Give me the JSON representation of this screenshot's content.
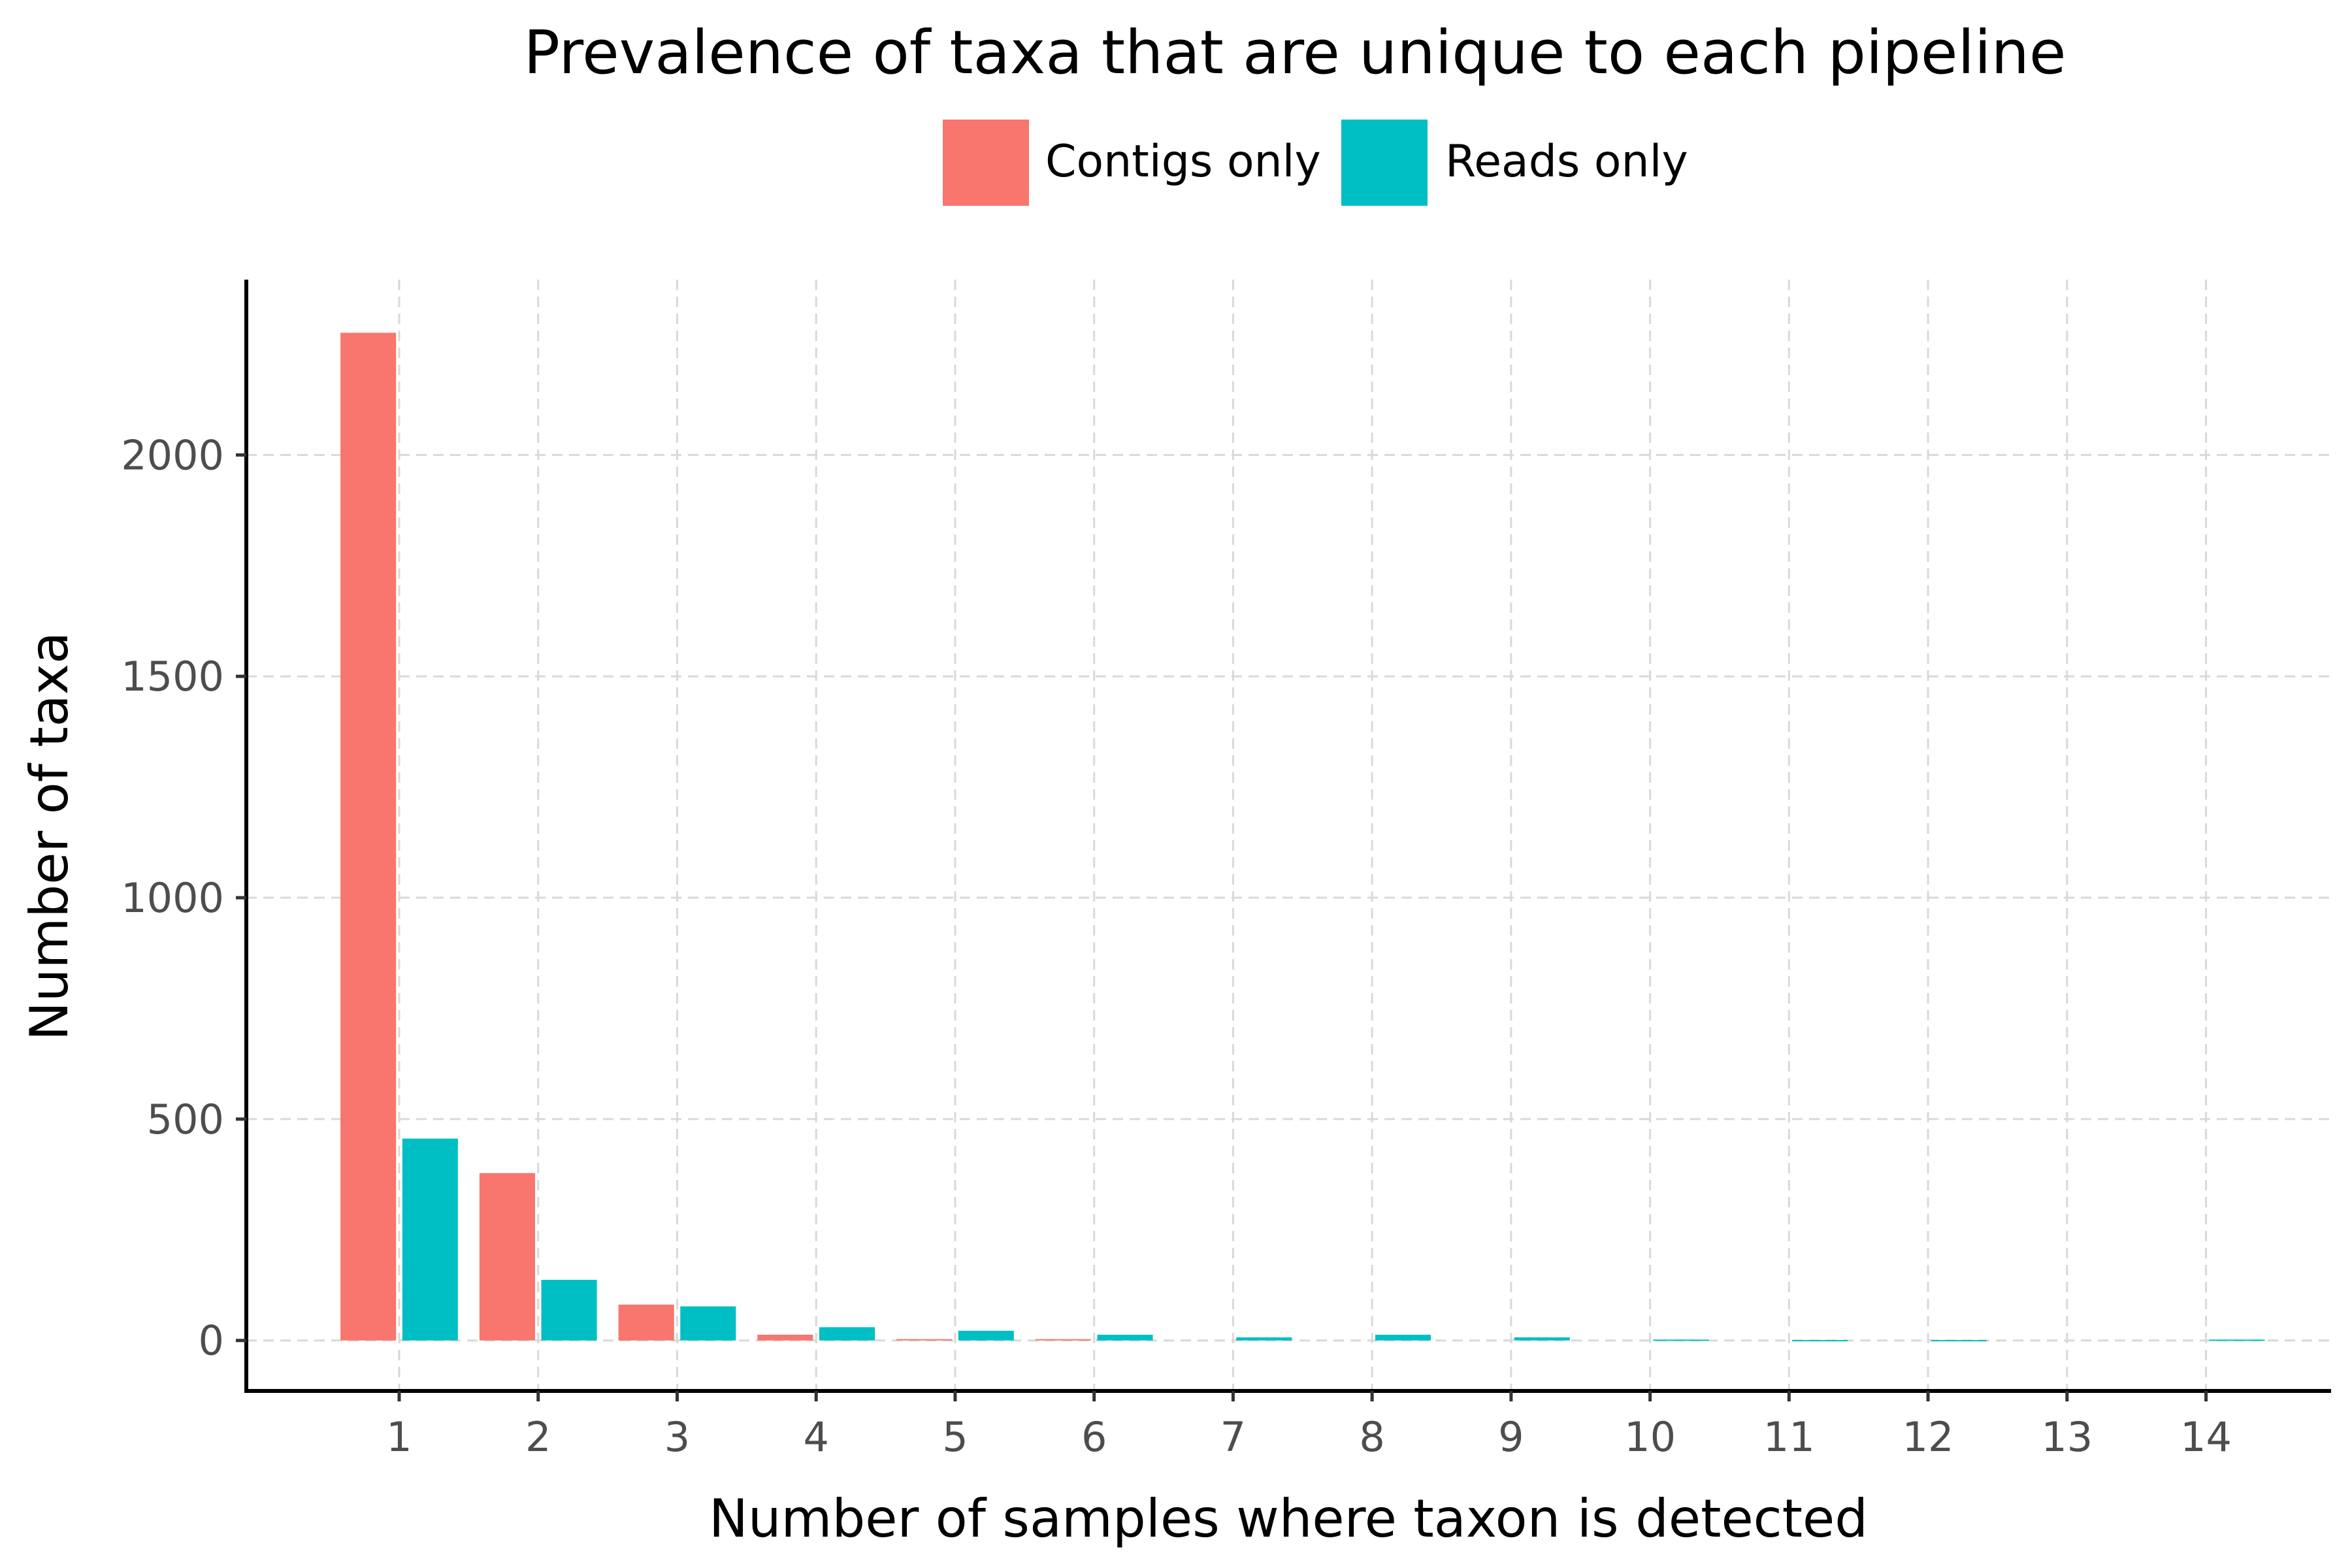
{
  "chart_data": {
    "type": "bar",
    "title": "Prevalence of taxa that are unique to each pipeline",
    "xlabel": "Number of samples where taxon is detected",
    "ylabel": "Number of taxa",
    "categories": [
      "1",
      "2",
      "3",
      "4",
      "5",
      "6",
      "7",
      "8",
      "9",
      "10",
      "11",
      "12",
      "13",
      "14"
    ],
    "series": [
      {
        "name": "Contigs only",
        "color": "#F8766D",
        "values": [
          2276,
          378,
          81,
          13,
          3,
          3,
          0,
          0,
          0,
          0,
          0,
          0,
          0,
          0
        ]
      },
      {
        "name": "Reads only",
        "color": "#00BFC4",
        "values": [
          456,
          137,
          77,
          30,
          22,
          13,
          7,
          13,
          7,
          2,
          1,
          1,
          0,
          2
        ]
      }
    ],
    "x_ticks": [
      "1",
      "2",
      "3",
      "4",
      "5",
      "6",
      "7",
      "8",
      "9",
      "10",
      "11",
      "12",
      "13",
      "14"
    ],
    "y_ticks": [
      0,
      500,
      1000,
      1500,
      2000
    ],
    "y_tick_labels": [
      "0",
      "500",
      "1000",
      "1500",
      "2000"
    ],
    "xlim": [
      -0.1,
      14.9
    ],
    "ylim": [
      -114,
      2396
    ],
    "grid": true,
    "grid_style": "dashed",
    "legend_position": "top",
    "bar_position": "dodge"
  }
}
